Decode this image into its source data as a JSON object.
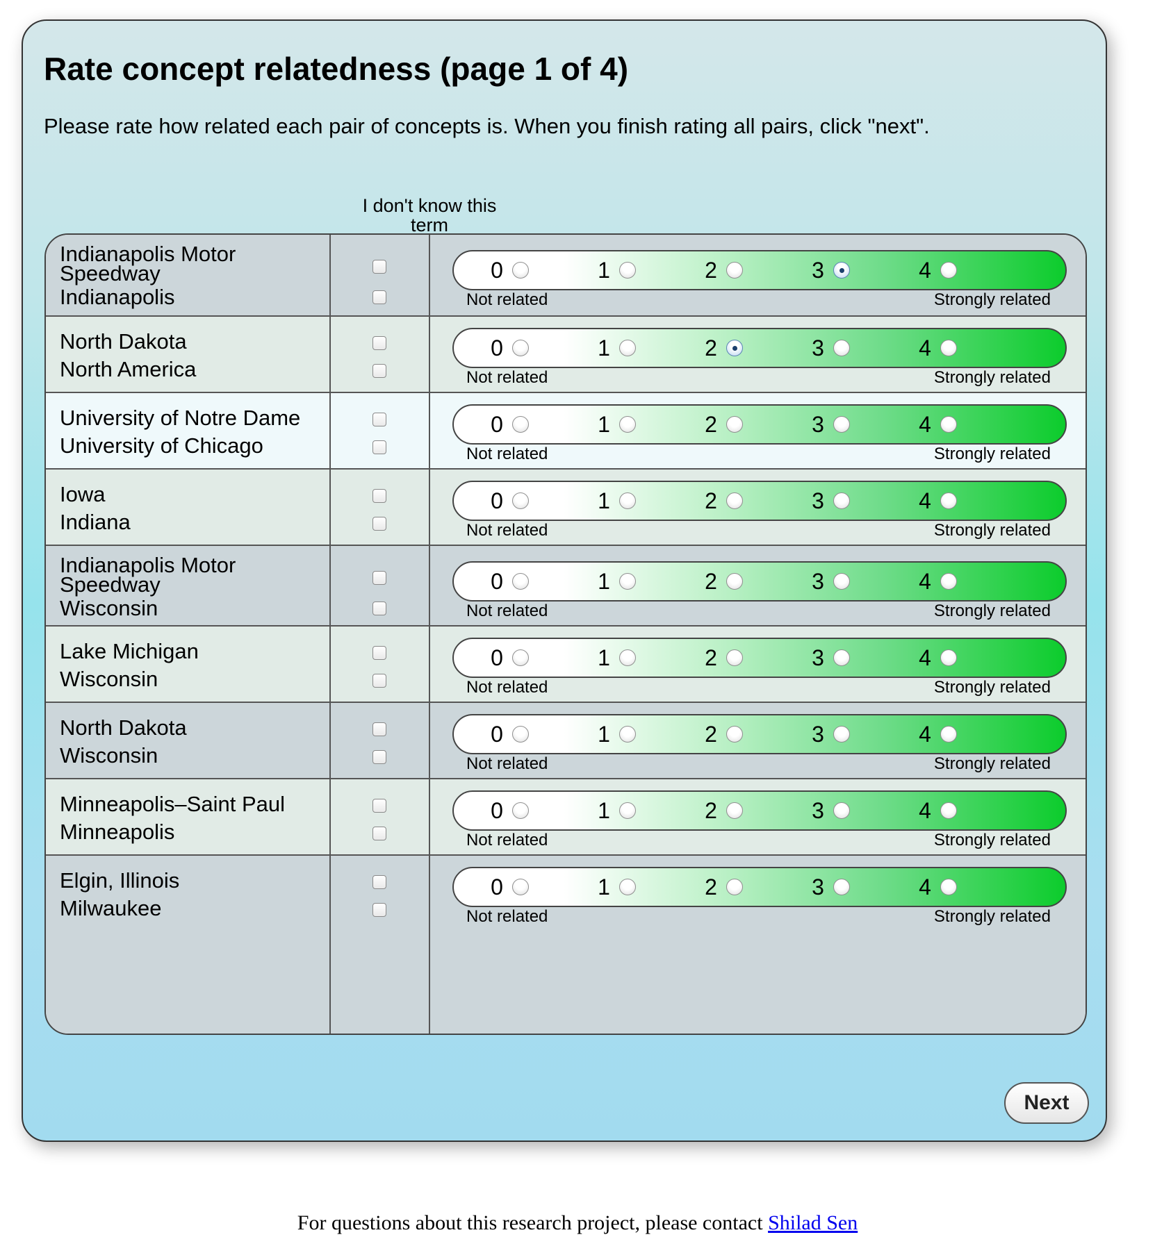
{
  "page": {
    "title": "Rate concept relatedness (page 1 of 4)",
    "instructions": "Please rate how related each pair of concepts is. When you finish rating all pairs, click \"next\".",
    "dont_know_header": "I don't know this term",
    "scale_values": [
      "0",
      "1",
      "2",
      "3",
      "4"
    ],
    "scale_min_label": "Not related",
    "scale_max_label": "Strongly related",
    "next_label": "Next"
  },
  "pairs": [
    {
      "term1": "Indianapolis Motor Speedway",
      "term2": "Indianapolis",
      "rating": 3
    },
    {
      "term1": "North Dakota",
      "term2": "North America",
      "rating": 2
    },
    {
      "term1": "University of Notre Dame",
      "term2": "University of Chicago",
      "rating": null
    },
    {
      "term1": "Iowa",
      "term2": "Indiana",
      "rating": null
    },
    {
      "term1": "Indianapolis Motor Speedway",
      "term2": "Wisconsin",
      "rating": null
    },
    {
      "term1": "Lake Michigan",
      "term2": "Wisconsin",
      "rating": null
    },
    {
      "term1": "North Dakota",
      "term2": "Wisconsin",
      "rating": null
    },
    {
      "term1": "Minneapolis–Saint Paul",
      "term2": "Minneapolis",
      "rating": null
    },
    {
      "term1": "Elgin, Illinois",
      "term2": "Milwaukee",
      "rating": null
    }
  ],
  "footer": {
    "text": "For questions about this research project, please contact ",
    "link_text": "Shilad Sen"
  }
}
